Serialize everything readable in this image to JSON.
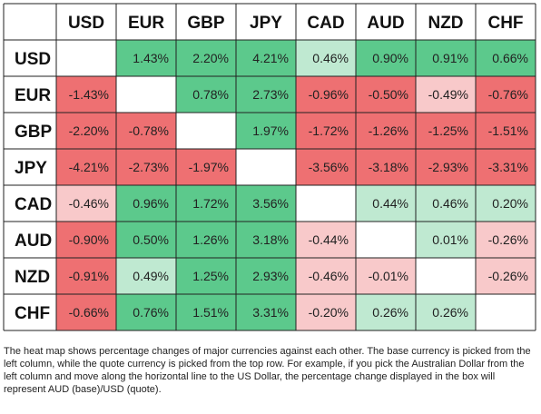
{
  "chart_data": {
    "type": "heatmap",
    "title": "",
    "xlabel": "",
    "ylabel": "",
    "columns": [
      "USD",
      "EUR",
      "GBP",
      "JPY",
      "CAD",
      "AUD",
      "NZD",
      "CHF"
    ],
    "rows": [
      "USD",
      "EUR",
      "GBP",
      "JPY",
      "CAD",
      "AUD",
      "NZD",
      "CHF"
    ],
    "values": [
      [
        null,
        1.43,
        2.2,
        4.21,
        0.46,
        0.9,
        0.91,
        0.66
      ],
      [
        -1.43,
        null,
        0.78,
        2.73,
        -0.96,
        -0.5,
        -0.49,
        -0.76
      ],
      [
        -2.2,
        -0.78,
        null,
        1.97,
        -1.72,
        -1.26,
        -1.25,
        -1.51
      ],
      [
        -4.21,
        -2.73,
        -1.97,
        null,
        -3.56,
        -3.18,
        -2.93,
        -3.31
      ],
      [
        -0.46,
        0.96,
        1.72,
        3.56,
        null,
        0.44,
        0.46,
        0.2
      ],
      [
        -0.9,
        0.5,
        1.26,
        3.18,
        -0.44,
        null,
        0.01,
        -0.26
      ],
      [
        -0.91,
        0.49,
        1.25,
        2.93,
        -0.46,
        -0.01,
        null,
        -0.26
      ],
      [
        -0.66,
        0.76,
        1.51,
        3.31,
        -0.2,
        0.26,
        0.26,
        null
      ]
    ],
    "value_suffix": "%",
    "colors": {
      "positive_strong": "#5cc98c",
      "positive_light": "#bfe9d1",
      "negative_strong": "#ee7072",
      "negative_light": "#f8c9ca",
      "grid_line": "#222222",
      "header_bg": "#ffffff"
    }
  },
  "caption": "The heat map shows percentage changes of major currencies against each other. The base currency is picked from the left column, while the quote currency is picked from the top row. For example, if you pick the Australian Dollar from the left column and move along the horizontal line to the US Dollar, the percentage change displayed in the box will represent AUD (base)/USD (quote)."
}
